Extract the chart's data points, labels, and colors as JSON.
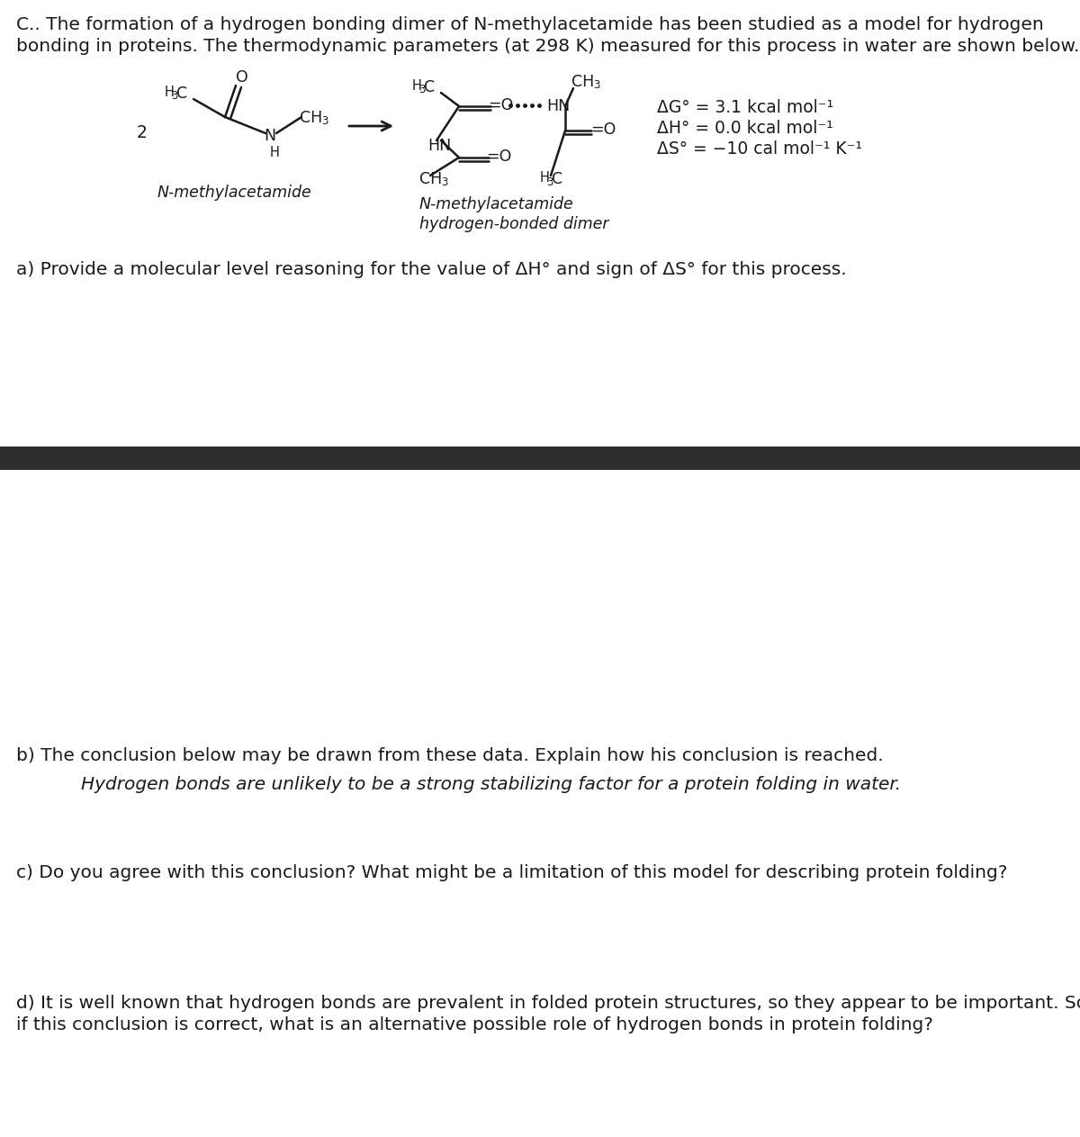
{
  "bg_color": "#ffffff",
  "text_color": "#1a1a1a",
  "title_line1": "C.. The formation of a hydrogen bonding dimer of N-methylacetamide has been studied as a model for hydrogen",
  "title_line2": "bonding in proteins. The thermodynamic parameters (at 298 K) measured for this process in water are shown below.",
  "section_a": "a) Provide a molecular level reasoning for the value of ΔH° and sign of ΔS° for this process.",
  "section_b_intro": "b) The conclusion below may be drawn from these data. Explain how his conclusion is reached.",
  "section_b_italic": "Hydrogen bonds are unlikely to be a strong stabilizing factor for a protein folding in water.",
  "section_c": "c) Do you agree with this conclusion? What might be a limitation of this model for describing protein folding?",
  "section_d_line1": "d) It is well known that hydrogen bonds are prevalent in folded protein structures, so they appear to be important. So,",
  "section_d_line2": "if this conclusion is correct, what is an alternative possible role of hydrogen bonds in protein folding?",
  "thermo_delta_g": "ΔG° = 3.1 kcal mol⁻¹",
  "thermo_delta_h": "ΔH° = 0.0 kcal mol⁻¹",
  "thermo_delta_s": "ΔS° = −10 cal mol⁻¹ K⁻¹",
  "label_reactant": "N-methylacetamide",
  "label_product_1": "N-methylacetamide",
  "label_product_2": "hydrogen-bonded dimer",
  "divider_color": "#2d2d2d",
  "font_size_main": 14.5,
  "font_size_chem": 12.5,
  "font_size_sub": 9.5
}
